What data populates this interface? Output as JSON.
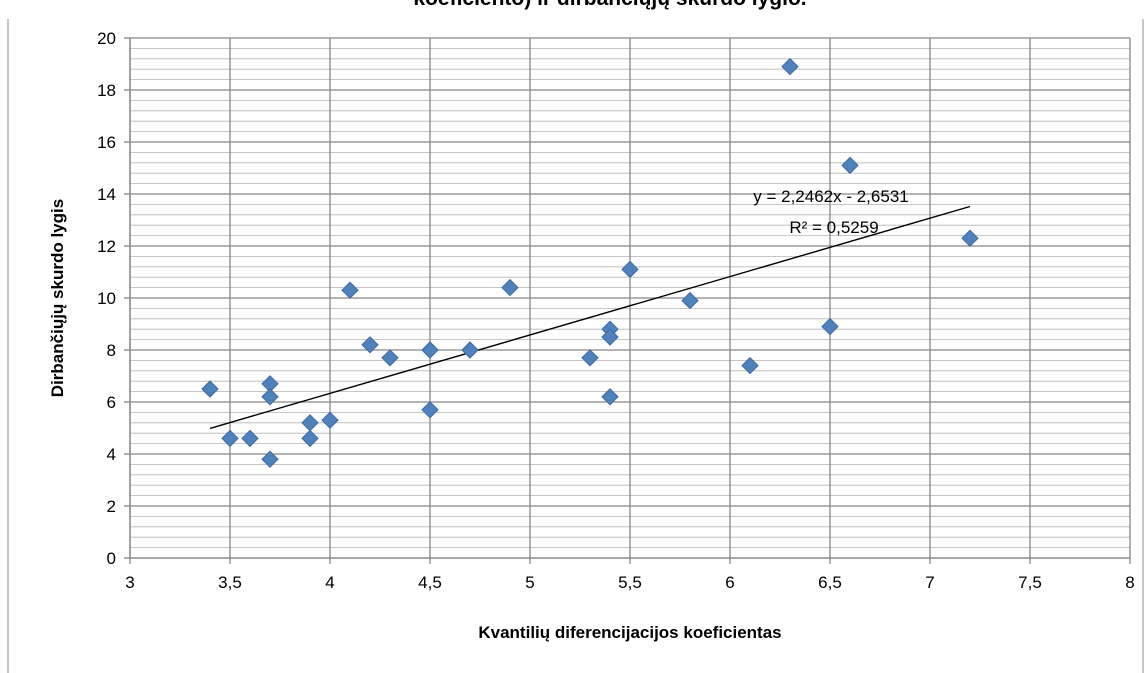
{
  "chart_data": {
    "type": "scatter",
    "title": "koeficiento) ir dirbančiųjų skurdo lygio.",
    "xlabel": "Kvantilių diferencijacijos koeficientas",
    "ylabel": "Dirbančiųjų skurdo lygis",
    "xlim": [
      3,
      8
    ],
    "ylim": [
      0,
      20
    ],
    "x_ticks": [
      3,
      3.5,
      4,
      4.5,
      5,
      5.5,
      6,
      6.5,
      7,
      7.5,
      8
    ],
    "x_tick_labels": [
      "3",
      "3,5",
      "4",
      "4,5",
      "5",
      "5,5",
      "6",
      "6,5",
      "7",
      "7,5",
      "8"
    ],
    "y_ticks": [
      0,
      2,
      4,
      6,
      8,
      10,
      12,
      14,
      16,
      18,
      20
    ],
    "y_tick_labels": [
      "0",
      "2",
      "4",
      "6",
      "8",
      "10",
      "12",
      "14",
      "16",
      "18",
      "20"
    ],
    "grid": true,
    "marker_color": "#4f81bd",
    "points": [
      {
        "x": 3.4,
        "y": 6.5
      },
      {
        "x": 3.5,
        "y": 4.6
      },
      {
        "x": 3.6,
        "y": 4.6
      },
      {
        "x": 3.7,
        "y": 6.7
      },
      {
        "x": 3.7,
        "y": 6.2
      },
      {
        "x": 3.7,
        "y": 3.8
      },
      {
        "x": 3.9,
        "y": 5.2
      },
      {
        "x": 3.9,
        "y": 4.6
      },
      {
        "x": 4.0,
        "y": 5.3
      },
      {
        "x": 4.1,
        "y": 10.3
      },
      {
        "x": 4.2,
        "y": 8.2
      },
      {
        "x": 4.3,
        "y": 7.7
      },
      {
        "x": 4.5,
        "y": 8.0
      },
      {
        "x": 4.5,
        "y": 5.7
      },
      {
        "x": 4.7,
        "y": 8.0
      },
      {
        "x": 4.9,
        "y": 10.4
      },
      {
        "x": 5.3,
        "y": 7.7
      },
      {
        "x": 5.4,
        "y": 8.8
      },
      {
        "x": 5.4,
        "y": 8.5
      },
      {
        "x": 5.4,
        "y": 6.2
      },
      {
        "x": 5.5,
        "y": 11.1
      },
      {
        "x": 5.8,
        "y": 9.9
      },
      {
        "x": 6.1,
        "y": 7.4
      },
      {
        "x": 6.3,
        "y": 18.9
      },
      {
        "x": 6.5,
        "y": 8.9
      },
      {
        "x": 6.6,
        "y": 15.1
      },
      {
        "x": 7.2,
        "y": 12.3
      }
    ],
    "trendline": {
      "slope": 2.2462,
      "intercept": -2.6531,
      "x_range": [
        3.4,
        7.2
      ],
      "equation_label": "y = 2,2462x - 2,6531",
      "r2_label": "R² = 0,5259"
    }
  }
}
